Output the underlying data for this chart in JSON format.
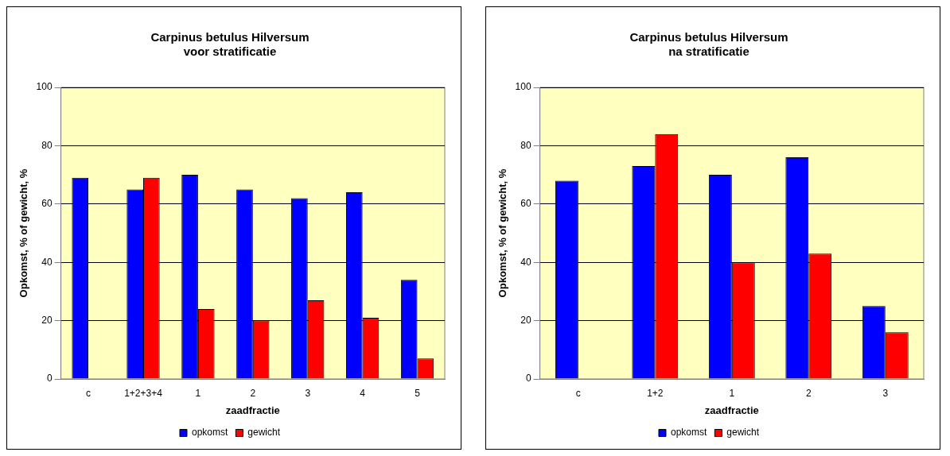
{
  "chart_data": [
    {
      "type": "bar",
      "title": [
        "Carpinus betulus Hilversum",
        "voor stratificatie"
      ],
      "xlabel": "zaadfractie",
      "ylabel": "Opkomst, % of gewicht, %",
      "categories": [
        "c",
        "1+2+3+4",
        "1",
        "2",
        "3",
        "4",
        "5"
      ],
      "series": [
        {
          "name": "opkomst",
          "color": "#0000ff",
          "values": [
            69,
            65,
            70,
            65,
            62,
            64,
            34
          ]
        },
        {
          "name": "gewicht",
          "color": "#ff0000",
          "values": [
            null,
            69,
            24,
            20,
            27,
            21,
            7
          ]
        }
      ],
      "ylim": [
        0,
        100
      ],
      "yticks": [
        0,
        20,
        40,
        60,
        80,
        100
      ],
      "grid": "y",
      "legend": "bottom"
    },
    {
      "type": "bar",
      "title": [
        "Carpinus betulus Hilversum",
        "na stratificatie"
      ],
      "xlabel": "zaadfractie",
      "ylabel": "Opkomst, % of gewicht, %",
      "categories": [
        "c",
        "1+2",
        "1",
        "2",
        "3"
      ],
      "series": [
        {
          "name": "opkomst",
          "color": "#0000ff",
          "values": [
            68,
            73,
            70,
            76,
            25
          ]
        },
        {
          "name": "gewicht",
          "color": "#ff0000",
          "values": [
            null,
            84,
            40,
            43,
            16
          ]
        }
      ],
      "ylim": [
        0,
        100
      ],
      "yticks": [
        0,
        20,
        40,
        60,
        80,
        100
      ],
      "grid": "y",
      "legend": "bottom"
    }
  ]
}
